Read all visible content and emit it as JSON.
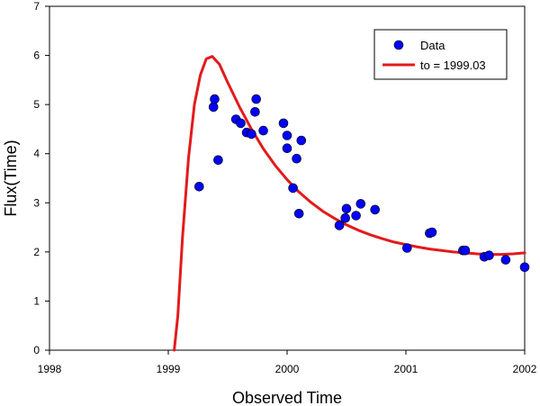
{
  "chart_data": {
    "type": "scatter",
    "title": "",
    "xlabel": "Observed Time",
    "ylabel": "Flux(Time)",
    "xlim": [
      1998,
      2002
    ],
    "ylim": [
      0,
      7
    ],
    "x_ticks": [
      "1998",
      "1999",
      "2000",
      "2001",
      "2002"
    ],
    "y_ticks": [
      "0",
      "1",
      "2",
      "3",
      "4",
      "5",
      "6",
      "7"
    ],
    "grid": false,
    "legend_position": "top-right",
    "series": [
      {
        "name": "Data",
        "kind": "scatter",
        "color": "#0000ff",
        "x": [
          1999.26,
          1999.38,
          1999.39,
          1999.42,
          1999.57,
          1999.61,
          1999.66,
          1999.7,
          1999.73,
          1999.74,
          1999.8,
          1999.97,
          2000.0,
          2000.0,
          2000.05,
          2000.08,
          2000.1,
          2000.12,
          2000.44,
          2000.49,
          2000.5,
          2000.58,
          2000.62,
          2000.74,
          2001.01,
          2001.2,
          2001.22,
          2001.48,
          2001.5,
          2001.66,
          2001.7,
          2001.84,
          2002.0
        ],
        "y": [
          3.33,
          4.95,
          5.11,
          3.87,
          4.7,
          4.62,
          4.43,
          4.4,
          4.85,
          5.11,
          4.47,
          4.62,
          4.11,
          4.37,
          3.3,
          3.9,
          2.78,
          4.27,
          2.54,
          2.69,
          2.88,
          2.74,
          2.98,
          2.86,
          2.08,
          2.38,
          2.4,
          2.03,
          2.03,
          1.9,
          1.93,
          1.84,
          1.69
        ]
      },
      {
        "name": "to = 1999.03",
        "kind": "line",
        "color": "#e31a1c",
        "x": [
          1999.05,
          1999.08,
          1999.12,
          1999.17,
          1999.22,
          1999.27,
          1999.32,
          1999.37,
          1999.43,
          1999.5,
          1999.6,
          1999.7,
          1999.8,
          1999.9,
          2000.0,
          2000.1,
          2000.2,
          2000.3,
          2000.4,
          2000.5,
          2000.6,
          2000.7,
          2000.8,
          2000.9,
          2001.0,
          2001.1,
          2001.2,
          2001.3,
          2001.4,
          2001.5,
          2001.6,
          2001.7,
          2001.8,
          2001.9,
          2002.0
        ],
        "y": [
          0.0,
          0.7,
          2.3,
          3.9,
          5.0,
          5.6,
          5.93,
          5.98,
          5.82,
          5.45,
          4.95,
          4.5,
          4.1,
          3.76,
          3.47,
          3.22,
          3.01,
          2.83,
          2.68,
          2.55,
          2.44,
          2.35,
          2.27,
          2.2,
          2.15,
          2.1,
          2.06,
          2.03,
          2.0,
          1.98,
          1.96,
          1.95,
          1.95,
          1.96,
          1.98
        ]
      }
    ]
  }
}
